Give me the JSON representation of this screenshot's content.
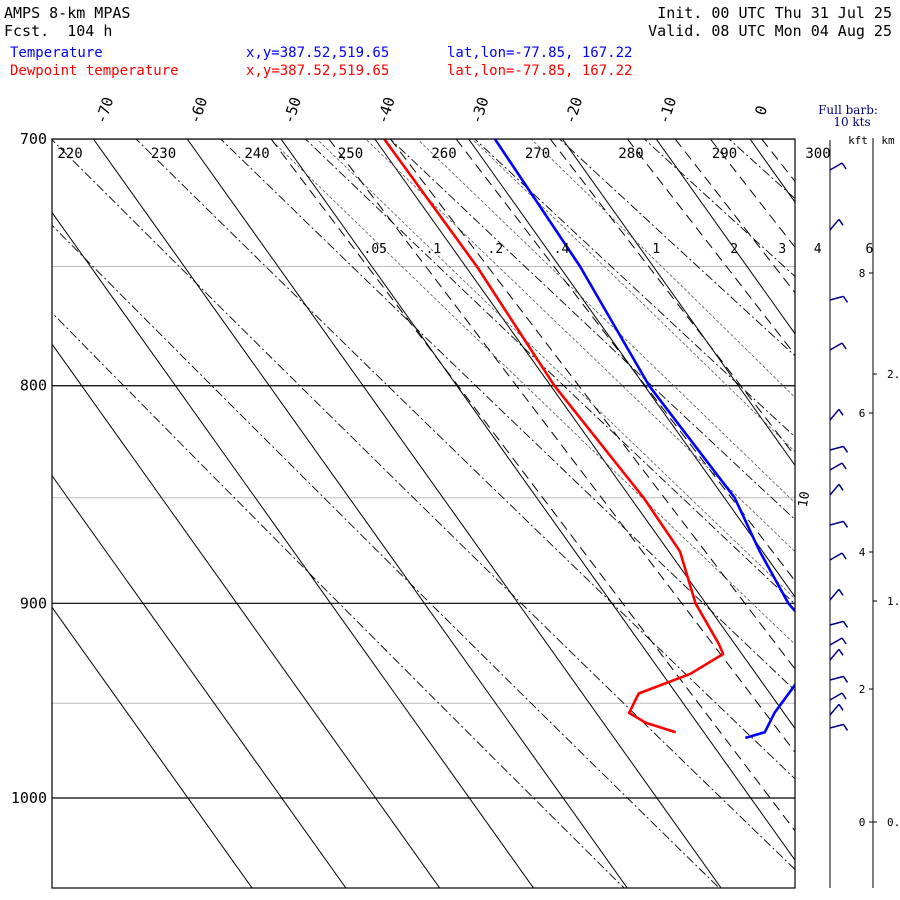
{
  "header": {
    "model": "AMPS 8-km MPAS",
    "forecast": "Fcst.  104 h",
    "init": "Init. 00 UTC Thu 31 Jul 25",
    "valid": "Valid. 08 UTC Mon 04 Aug 25"
  },
  "legend": [
    {
      "name": "Temperature",
      "xy": "x,y=387.52,519.65",
      "latlon": "lat,lon=-77.85, 167.22",
      "color": "#0000ff"
    },
    {
      "name": "Dewpoint temperature",
      "xy": "x,y=387.52,519.65",
      "latlon": "lat,lon=-77.85, 167.22",
      "color": "#ff0000"
    }
  ],
  "barb_note": [
    "Full barb:",
    "10 kts"
  ],
  "height_axis": {
    "left_label": "kft",
    "right_label": "km"
  },
  "chart_data": {
    "type": "line",
    "subtype": "skew-T log-P",
    "y_axis": {
      "name": "pressure (hPa)",
      "range": [
        1050,
        700
      ],
      "ticks": [
        700,
        800,
        900,
        1000
      ]
    },
    "temperature_ticks": [
      "-70",
      "-60",
      "-50",
      "-40",
      "-30",
      "-20",
      "-10",
      "0"
    ],
    "theta_labels": [
      "220",
      "230",
      "240",
      "250",
      "260",
      "270",
      "280",
      "290",
      "300"
    ],
    "mixing_ratio_labels": [
      ".05",
      ".1",
      ".2",
      ".4",
      "1",
      "2",
      "3",
      "4",
      "6"
    ],
    "series": [
      {
        "name": "Temperature",
        "color": "#0000ff",
        "points": [
          [
            700,
            -27.2
          ],
          [
            750,
            -27.8
          ],
          [
            800,
            -29.5
          ],
          [
            850,
            -28.9
          ],
          [
            875,
            -30.3
          ],
          [
            900,
            -31.2
          ],
          [
            920,
            -30.5
          ],
          [
            925,
            -31.8
          ],
          [
            940,
            -36.5
          ],
          [
            955,
            -41.0
          ],
          [
            965,
            -43.5
          ],
          [
            968,
            -46.0
          ]
        ]
      },
      {
        "name": "Dewpoint temperature",
        "color": "#ff0000",
        "points": [
          [
            700,
            -39.0
          ],
          [
            750,
            -38.8
          ],
          [
            800,
            -39.6
          ],
          [
            850,
            -38.6
          ],
          [
            875,
            -38.8
          ],
          [
            900,
            -41.1
          ],
          [
            920,
            -41.7
          ],
          [
            925,
            -42.0
          ],
          [
            935,
            -47.0
          ],
          [
            945,
            -54.0
          ],
          [
            955,
            -56.5
          ],
          [
            960,
            -55.5
          ],
          [
            965,
            -53.0
          ]
        ]
      }
    ],
    "wind_barb_label": "10",
    "height_ticks_kft": [
      "0",
      "2",
      "4",
      "6",
      "8"
    ],
    "height_ticks_km": [
      "0.",
      "1.",
      "2."
    ]
  }
}
